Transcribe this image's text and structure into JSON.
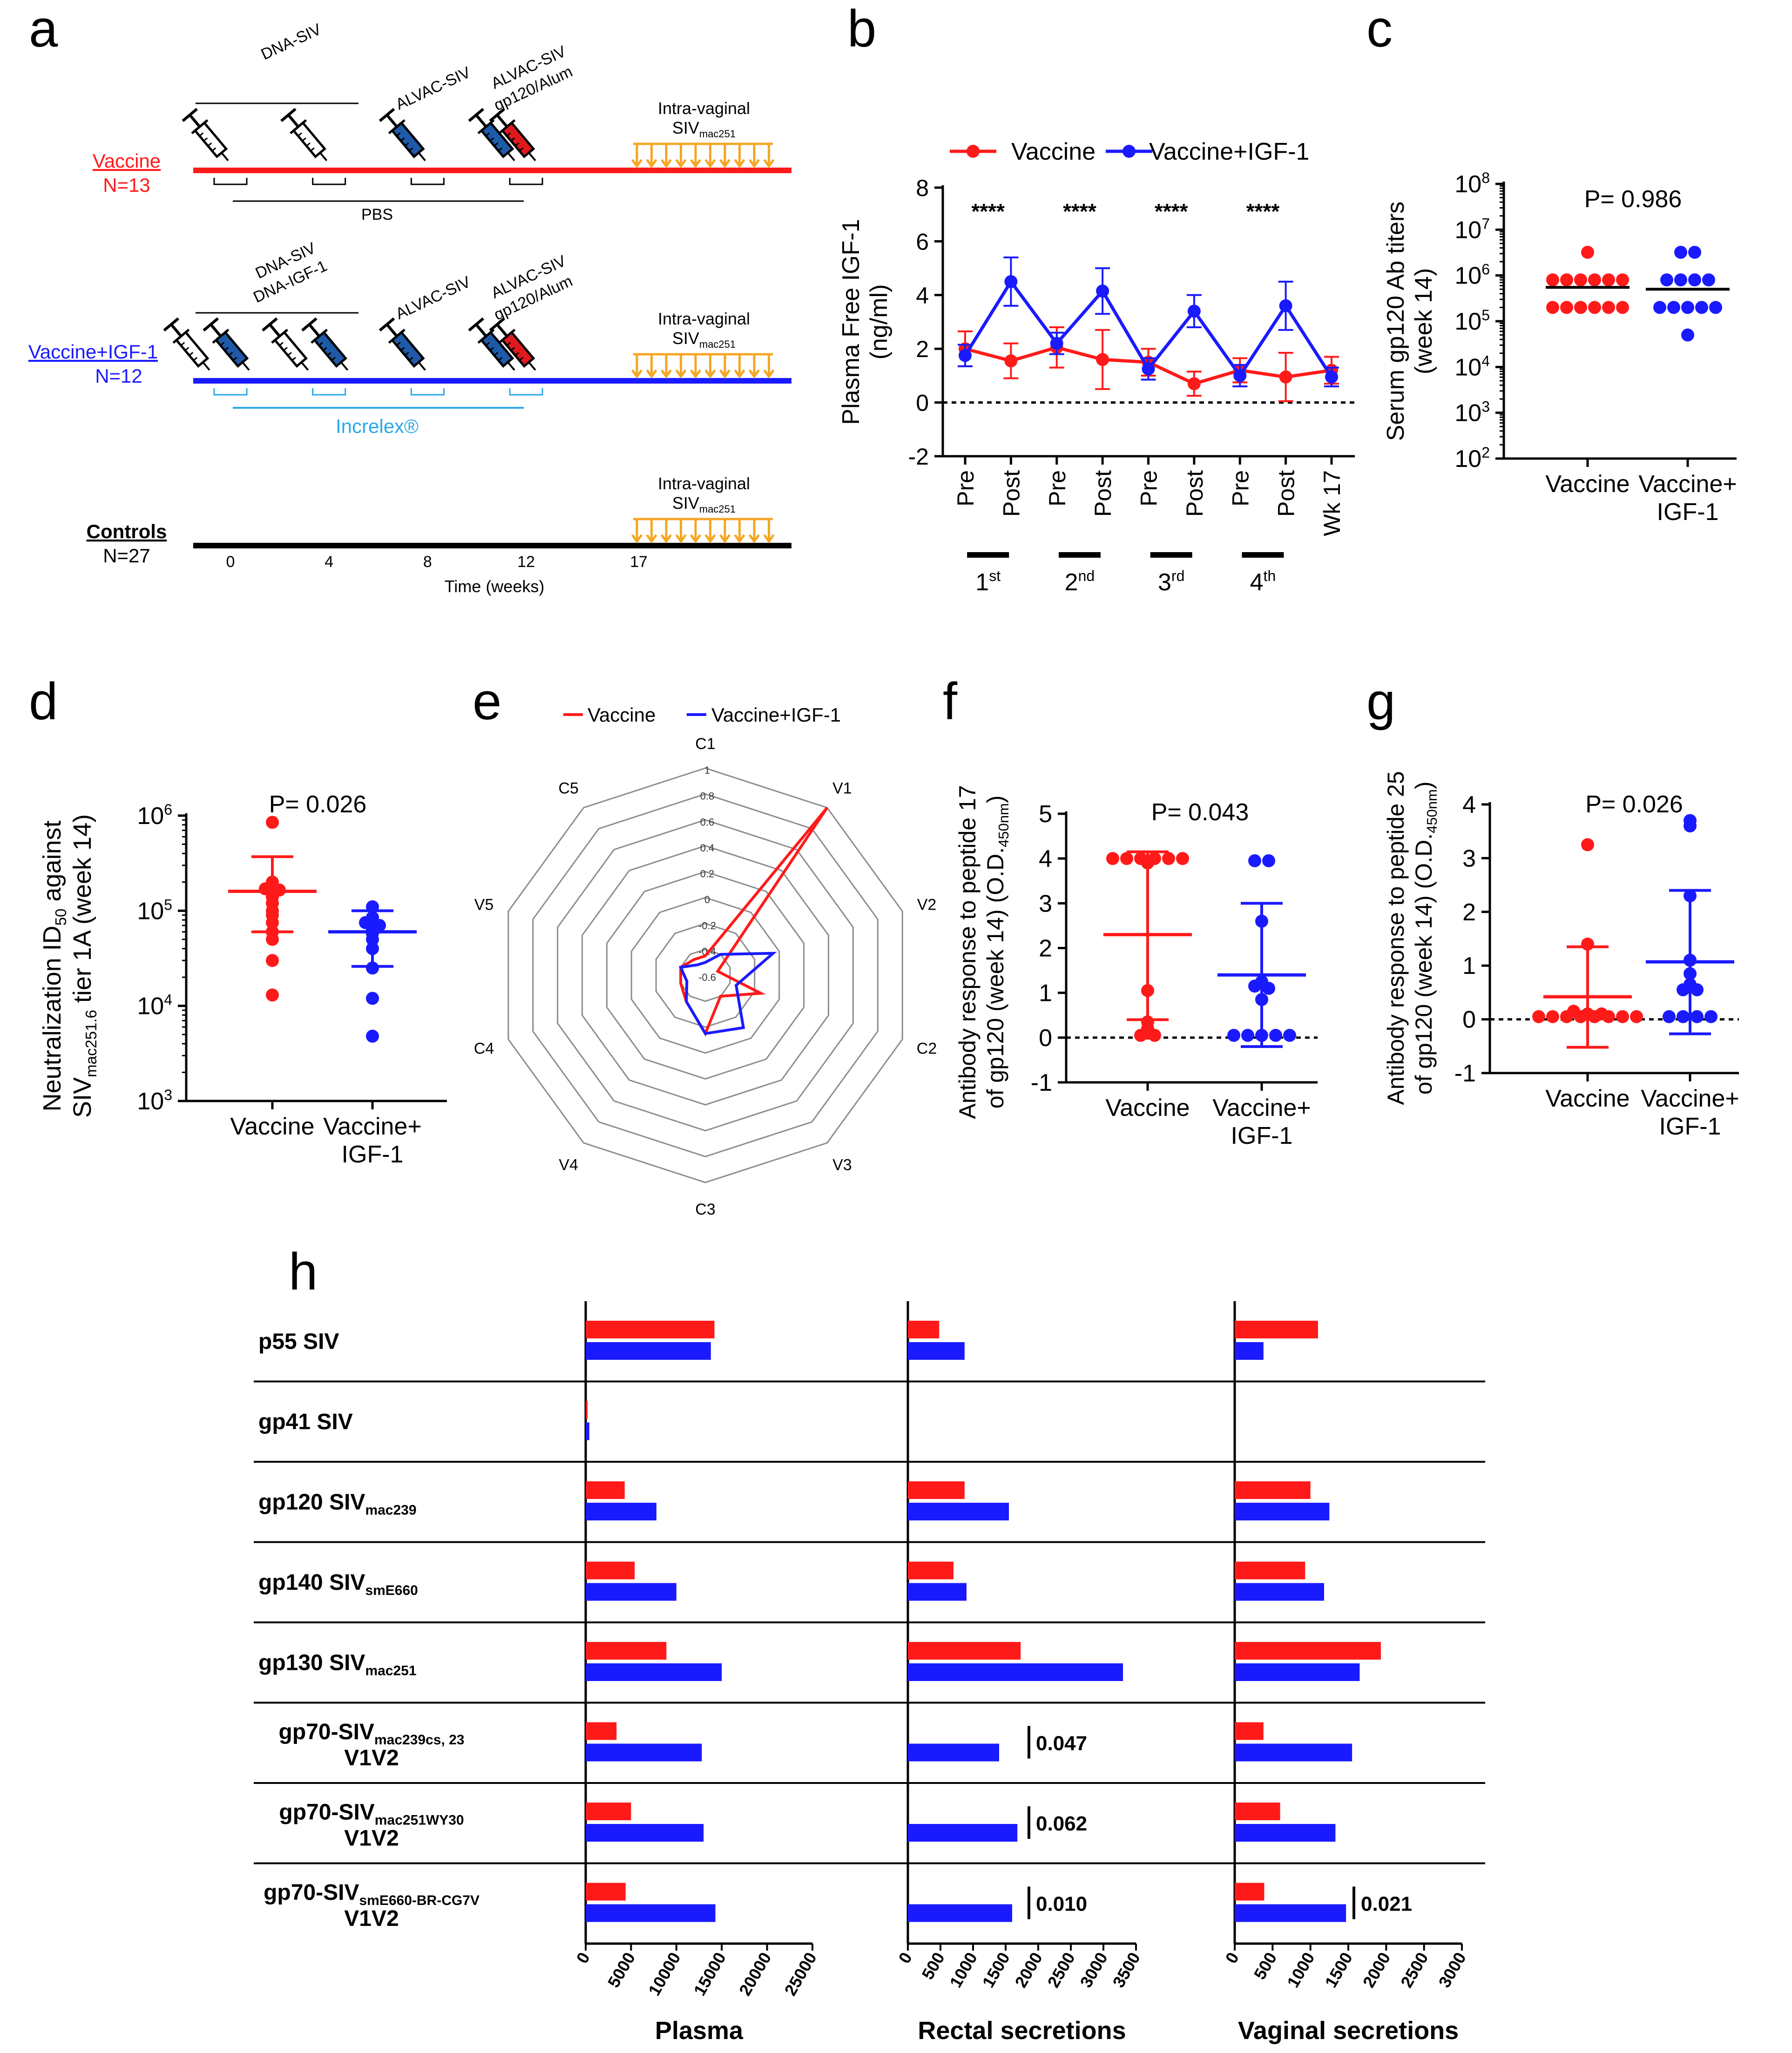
{
  "colors": {
    "vaccine": "#ff1a1a",
    "igf": "#1a1aff",
    "control": "#000000",
    "increlex": "#2aa8ea",
    "challenge": "#f5a623",
    "axis": "#000000"
  },
  "panel_letters": [
    "a",
    "b",
    "c",
    "d",
    "e",
    "f",
    "g",
    "h"
  ],
  "panel_a": {
    "vaccine_group": {
      "name": "Vaccine",
      "n": "N=13",
      "top_labels": [
        "DNA-SIV",
        "ALVAC-SIV",
        "ALVAC-SIV",
        "gp120/Alum"
      ],
      "bracket_label": "PBS"
    },
    "igf_group": {
      "name": "Vaccine+IGF-1",
      "n": "N=12",
      "top_labels": [
        "DNA-SIV",
        "DNA-IGF-1",
        "ALVAC-SIV",
        "ALVAC-SIV",
        "gp120/Alum"
      ],
      "bracket_label": "Increlex®"
    },
    "control_group": {
      "name": "Controls",
      "n": "N=27"
    },
    "challenge_label": "Intra-vaginal",
    "challenge_virus": "SIV",
    "challenge_virus_sub": "mac251",
    "time_ticks": [
      "0",
      "4",
      "8",
      "12",
      "17"
    ],
    "time_axis_label": "Time (weeks)"
  },
  "chart_data": [
    {
      "id": "b",
      "type": "line",
      "ylabel": "Plasma Free IGF-1 (ng/ml)",
      "ylim": [
        -2,
        8
      ],
      "yticks": [
        -2,
        0,
        2,
        4,
        6,
        8
      ],
      "categories": [
        "Pre",
        "Post",
        "Pre",
        "Post",
        "Pre",
        "Post",
        "Pre",
        "Post",
        "Wk 17"
      ],
      "immunization_labels": [
        {
          "base": "1",
          "sup": "st"
        },
        {
          "base": "2",
          "sup": "nd"
        },
        {
          "base": "3",
          "sup": "rd"
        },
        {
          "base": "4",
          "sup": "th"
        }
      ],
      "significance": [
        "****",
        "****",
        "****",
        "****"
      ],
      "series": [
        {
          "name": "Vaccine",
          "color": "#ff1a1a",
          "values": [
            2.0,
            1.55,
            2.05,
            1.6,
            1.5,
            0.7,
            1.2,
            0.95,
            1.2
          ],
          "err": [
            0.65,
            0.65,
            0.75,
            1.1,
            0.5,
            0.45,
            0.45,
            0.9,
            0.5
          ]
        },
        {
          "name": "Vaccine+IGF-1",
          "color": "#1a1aff",
          "values": [
            1.75,
            4.5,
            2.2,
            4.15,
            1.25,
            3.4,
            1.0,
            3.6,
            0.95
          ],
          "err": [
            0.4,
            0.9,
            0.4,
            0.85,
            0.4,
            0.6,
            0.4,
            0.9,
            0.35
          ]
        }
      ]
    },
    {
      "id": "c",
      "type": "scatter",
      "scale": "log",
      "ylabel": "Serum gp120 Ab titers (week 14)",
      "ylim_exp": [
        2,
        8
      ],
      "ytick_exps": [
        2,
        3,
        4,
        5,
        6,
        7,
        8
      ],
      "pvalue": "P= 0.986",
      "categories": [
        {
          "line1": "Vaccine",
          "line2": ""
        },
        {
          "line1": "Vaccine+",
          "line2": "IGF-1"
        }
      ],
      "groups": [
        {
          "name": "Vaccine",
          "color": "#ff1a1a",
          "mean": 550000,
          "values": [
            3200000,
            800000,
            800000,
            800000,
            800000,
            800000,
            800000,
            200000,
            200000,
            200000,
            200000,
            200000,
            200000
          ]
        },
        {
          "name": "Vaccine+IGF-1",
          "color": "#1a1aff",
          "mean": 500000,
          "values": [
            3200000,
            3200000,
            800000,
            800000,
            800000,
            800000,
            200000,
            200000,
            200000,
            200000,
            200000,
            50000
          ]
        }
      ]
    },
    {
      "id": "d",
      "type": "scatter",
      "scale": "log",
      "ylabel": "Neutralization ID50 against SIVmac251.6 tier 1A (week 14)",
      "ylabel_parts": {
        "l1_a": "Neutralization ID",
        "l1_sub": "50",
        "l1_b": " against",
        "l2_a": "SIV",
        "l2_sub": "mac251.6",
        "l2_b": " tier 1A (week 14)"
      },
      "ylim_exp": [
        3,
        6
      ],
      "ytick_exps": [
        3,
        4,
        5,
        6
      ],
      "pvalue": "P= 0.026",
      "categories": [
        {
          "line1": "Vaccine",
          "line2": ""
        },
        {
          "line1": "Vaccine+",
          "line2": "IGF-1"
        }
      ],
      "groups": [
        {
          "name": "Vaccine",
          "color": "#ff1a1a",
          "mean": 160000,
          "sd_top": 370000,
          "sd_bottom": 60000,
          "values": [
            850000,
            200000,
            170000,
            165000,
            140000,
            120000,
            100000,
            90000,
            75000,
            60000,
            50000,
            30000,
            13000
          ]
        },
        {
          "name": "Vaccine+IGF-1",
          "color": "#1a1aff",
          "mean": 60000,
          "sd_top": 100000,
          "sd_bottom": 26000,
          "values": [
            110000,
            85000,
            75000,
            70000,
            65000,
            62000,
            58000,
            50000,
            40000,
            25000,
            12000,
            4800
          ]
        }
      ]
    },
    {
      "id": "e",
      "type": "radar",
      "axes": [
        "C1",
        "V1",
        "V2",
        "C2",
        "V3",
        "C3",
        "V4",
        "C4",
        "V5",
        "C5"
      ],
      "range": [
        -0.6,
        1
      ],
      "ring_labels": [
        "1",
        "0.8",
        "0.6",
        "0.4",
        "0.2",
        "0",
        "-0.2",
        "-0.4",
        "-0.6"
      ],
      "series": [
        {
          "name": "Vaccine",
          "color": "#ff1a1a",
          "values": [
            -0.45,
            1.0,
            -0.5,
            -0.15,
            -0.4,
            -0.15,
            -0.35,
            -0.4,
            -0.4,
            -0.45
          ]
        },
        {
          "name": "Vaccine+IGF-1",
          "color": "#1a1aff",
          "values": [
            -0.5,
            -0.4,
            -0.05,
            -0.35,
            -0.1,
            -0.15,
            -0.35,
            -0.45,
            -0.4,
            -0.5
          ]
        }
      ]
    },
    {
      "id": "f",
      "type": "scatter",
      "ylabel_lines": [
        "Antibody response to peptide 17",
        "of gp120 (week 14) (O.D."
      ],
      "ylabel_sub": "450nm",
      "ylabel_end": ")",
      "ylim": [
        -1,
        5
      ],
      "yticks": [
        -1,
        0,
        1,
        2,
        3,
        4,
        5
      ],
      "pvalue": "P= 0.043",
      "categories": [
        {
          "line1": "Vaccine",
          "line2": ""
        },
        {
          "line1": "Vaccine+",
          "line2": "IGF-1"
        }
      ],
      "groups": [
        {
          "name": "Vaccine",
          "color": "#ff1a1a",
          "mean": 2.3,
          "sd_top": 4.15,
          "sd_bottom": 0.4,
          "values": [
            4.0,
            4.0,
            4.0,
            4.0,
            4.0,
            4.0,
            3.9,
            1.05,
            0.35,
            0.2,
            0.1,
            0.05,
            0.05
          ]
        },
        {
          "name": "Vaccine+IGF-1",
          "color": "#1a1aff",
          "mean": 1.4,
          "sd_top": 3.0,
          "sd_bottom": -0.2,
          "values": [
            3.95,
            3.95,
            2.6,
            1.25,
            1.15,
            1.1,
            0.85,
            0.05,
            0.05,
            0.05,
            0.05,
            0.05
          ]
        }
      ]
    },
    {
      "id": "g",
      "type": "scatter",
      "ylabel_lines": [
        "Antibody response to peptide 25",
        "of gp120 (week 14) (O.D."
      ],
      "ylabel_sub": "450nm",
      "ylabel_end": ")",
      "ylim": [
        -1,
        4
      ],
      "yticks": [
        -1,
        0,
        1,
        2,
        3,
        4
      ],
      "pvalue": "P= 0.026",
      "categories": [
        {
          "line1": "Vaccine",
          "line2": ""
        },
        {
          "line1": "Vaccine+",
          "line2": "IGF-1"
        }
      ],
      "groups": [
        {
          "name": "Vaccine",
          "color": "#ff1a1a",
          "mean": 0.42,
          "sd_top": 1.35,
          "sd_bottom": -0.52,
          "values": [
            3.25,
            1.4,
            0.15,
            0.1,
            0.1,
            0.05,
            0.05,
            0.05,
            0.05,
            0.05,
            0.05,
            0.05,
            0.05
          ]
        },
        {
          "name": "Vaccine+IGF-1",
          "color": "#1a1aff",
          "mean": 1.07,
          "sd_top": 2.4,
          "sd_bottom": -0.27,
          "values": [
            3.7,
            3.6,
            2.3,
            1.1,
            0.85,
            0.65,
            0.55,
            0.55,
            0.05,
            0.05,
            0.05,
            0.05
          ]
        }
      ]
    },
    {
      "id": "h",
      "type": "bar",
      "row_labels": [
        {
          "name": "p55 SIV",
          "sub": "",
          "line2": ""
        },
        {
          "name": "gp41 SIV",
          "sub": "",
          "line2": ""
        },
        {
          "name": "gp120 SIV",
          "sub": "mac239",
          "line2": ""
        },
        {
          "name": "gp140 SIV",
          "sub": "smE660",
          "line2": ""
        },
        {
          "name": "gp130 SIV",
          "sub": "mac251",
          "line2": ""
        },
        {
          "name": "gp70-SIV",
          "sub": "mac239cs, 23",
          "line2": "V1V2"
        },
        {
          "name": "gp70-SIV",
          "sub": "mac251WY30",
          "line2": "V1V2"
        },
        {
          "name": "gp70-SIV",
          "sub": "smE660-BR-CG7V",
          "line2": "V1V2"
        }
      ],
      "panels": [
        {
          "name": "Plasma",
          "xlim": [
            0,
            25000
          ],
          "ticks": [
            0,
            5000,
            10000,
            15000,
            20000,
            25000
          ],
          "vaccine": [
            14200,
            200,
            4300,
            5400,
            8900,
            3400,
            5000,
            4400
          ],
          "igf": [
            13800,
            400,
            7800,
            10000,
            15000,
            12800,
            13000,
            14300
          ],
          "pvalues": [
            "",
            "",
            "",
            "",
            "",
            "",
            "",
            ""
          ]
        },
        {
          "name": "Rectal secretions",
          "xlim": [
            0,
            3500
          ],
          "ticks": [
            0,
            500,
            1000,
            1500,
            2000,
            2500,
            3000,
            3500
          ],
          "vaccine": [
            480,
            0,
            870,
            700,
            1730,
            0,
            0,
            0
          ],
          "igf": [
            870,
            0,
            1550,
            900,
            3300,
            1400,
            1680,
            1600
          ],
          "pvalues": [
            "",
            "",
            "",
            "",
            "",
            "0.047",
            "0.062",
            "0.010"
          ]
        },
        {
          "name": "Vaginal secretions",
          "xlim": [
            0,
            3000
          ],
          "ticks": [
            0,
            500,
            1000,
            1500,
            2000,
            2500,
            3000
          ],
          "vaccine": [
            1100,
            0,
            1000,
            930,
            1930,
            380,
            600,
            390
          ],
          "igf": [
            380,
            0,
            1250,
            1180,
            1650,
            1550,
            1330,
            1470
          ],
          "pvalues": [
            "",
            "",
            "",
            "",
            "",
            "",
            "",
            "0.021"
          ]
        }
      ]
    }
  ]
}
